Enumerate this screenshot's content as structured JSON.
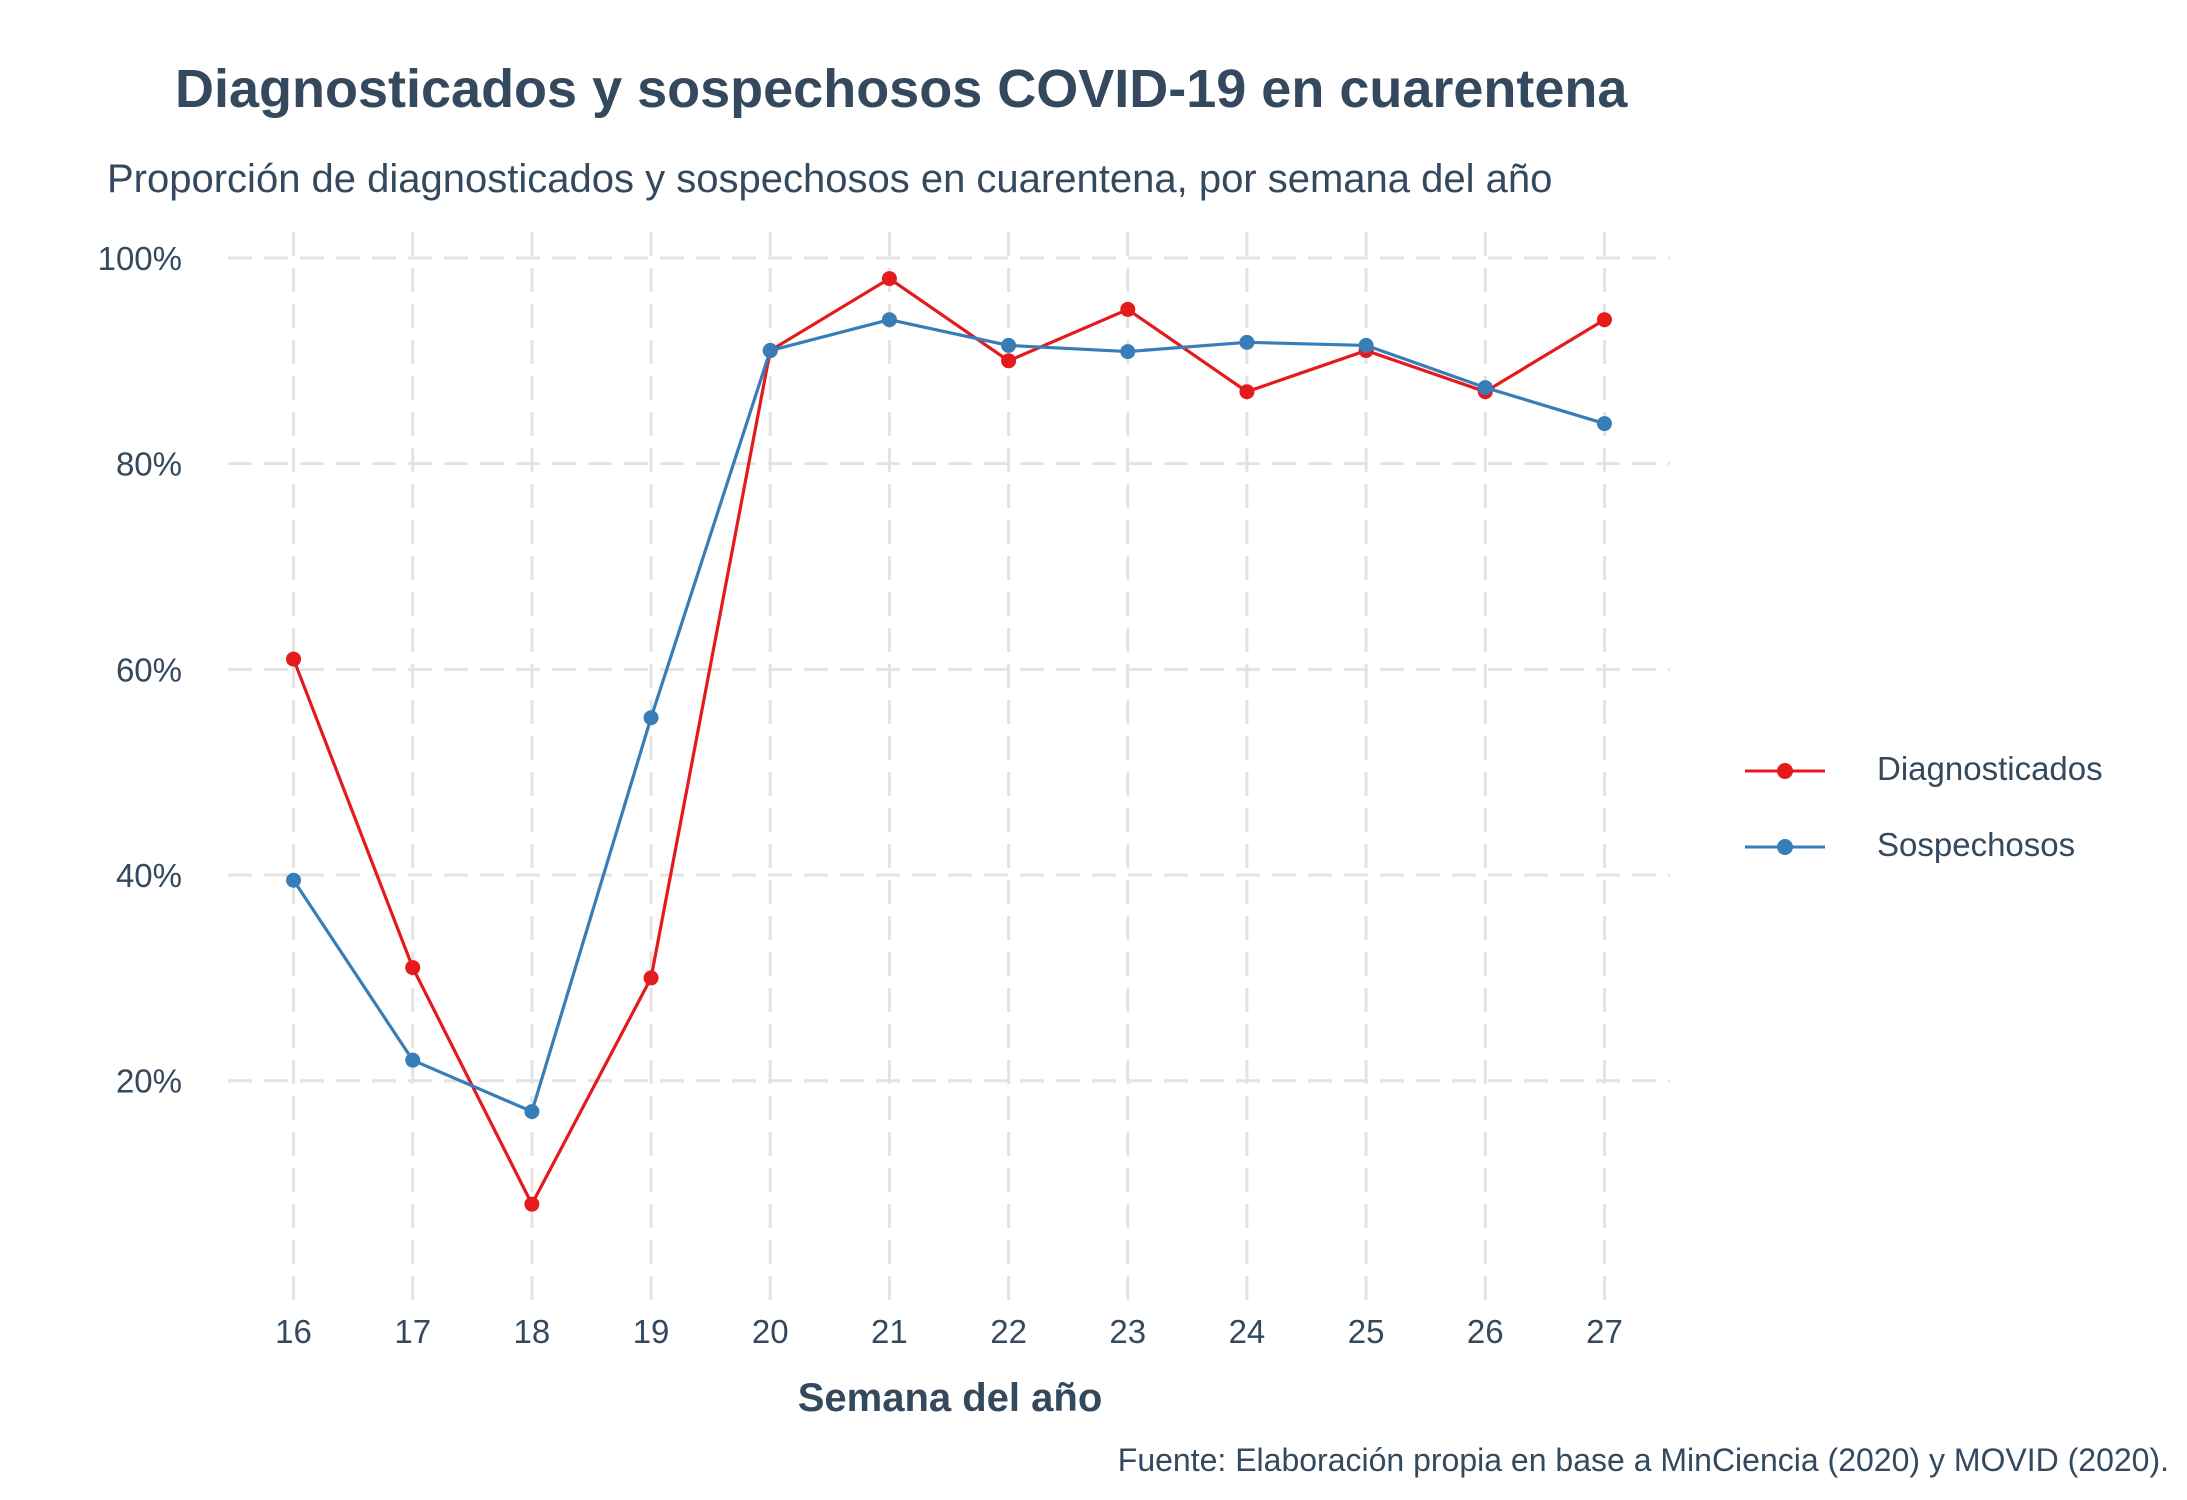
{
  "title": "Diagnosticados y sospechosos COVID-19 en cuarentena",
  "subtitle": "Proporción de diagnosticados y sospechosos en cuarentena, por semana del año",
  "caption": "Fuente: Elaboración propia en base a MinCiencia (2020) y MOVID (2020).",
  "chart_data": {
    "type": "line",
    "title": "Diagnosticados y sospechosos COVID-19 en cuarentena",
    "subtitle": "Proporción de diagnosticados y sospechosos en cuarentena, por semana del año",
    "xlabel": "Semana del año",
    "ylabel": "",
    "x": [
      16,
      17,
      18,
      19,
      20,
      21,
      22,
      23,
      24,
      25,
      26,
      27
    ],
    "x_tick_labels": [
      "16",
      "17",
      "18",
      "19",
      "20",
      "21",
      "22",
      "23",
      "24",
      "25",
      "26",
      "27"
    ],
    "y_ticks": [
      20,
      40,
      60,
      80,
      100
    ],
    "y_tick_labels": [
      "20%",
      "40%",
      "60%",
      "80%",
      "100%"
    ],
    "xlim": [
      15.45,
      27.55
    ],
    "ylim": [
      5,
      100
    ],
    "grid": true,
    "grid_style": "dashed",
    "legend_position": "right",
    "series": [
      {
        "name": "Diagnosticados",
        "color": "#e41a1c",
        "values": [
          61,
          31,
          8,
          30,
          91,
          98,
          90,
          95,
          87,
          91,
          87,
          94
        ]
      },
      {
        "name": "Sospechosos",
        "color": "#377eb8",
        "values": [
          39.5,
          22,
          17,
          55.3,
          91,
          94,
          91.5,
          90.9,
          91.8,
          91.5,
          87.4,
          83.9
        ]
      }
    ]
  }
}
